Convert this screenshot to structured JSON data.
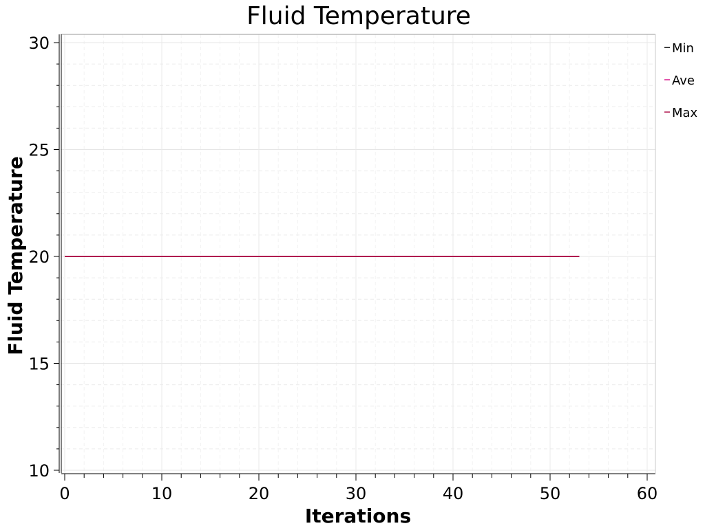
{
  "chart_data": {
    "type": "line",
    "title": "Fluid Temperature",
    "xlabel": "Iterations",
    "ylabel": "Fluid Temperature",
    "xlim": [
      0,
      60
    ],
    "ylim": [
      10,
      30
    ],
    "x_ticks": [
      0,
      10,
      20,
      30,
      40,
      50,
      60
    ],
    "y_ticks": [
      10,
      15,
      20,
      25,
      30
    ],
    "x_minor_step": 2,
    "y_minor_step": 1,
    "grid": true,
    "legend_position": "right",
    "series": [
      {
        "name": "Min",
        "color": "#000000",
        "x": [
          0,
          53
        ],
        "y": [
          20,
          20
        ]
      },
      {
        "name": "Ave",
        "color": "#d81b8f",
        "x": [
          0,
          53
        ],
        "y": [
          20,
          20
        ]
      },
      {
        "name": "Max",
        "color": "#b0174f",
        "x": [
          0,
          53
        ],
        "y": [
          20,
          20
        ]
      }
    ]
  }
}
